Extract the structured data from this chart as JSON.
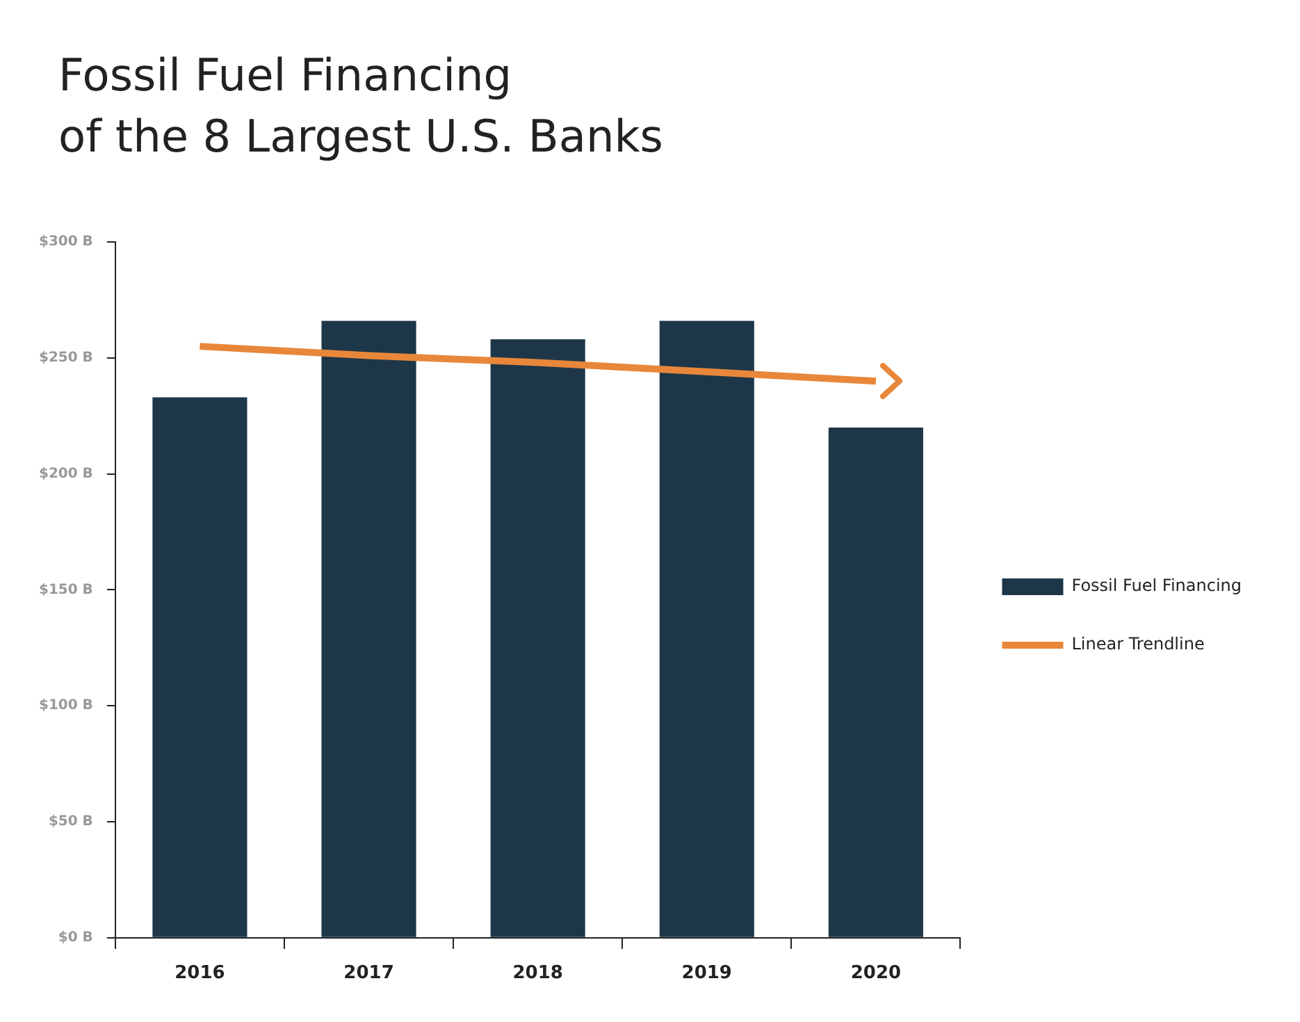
{
  "chart_data": {
    "type": "bar",
    "title": "Fossil Fuel Financing\nof the 8 Largest U.S. Banks",
    "categories": [
      "2016",
      "2017",
      "2018",
      "2019",
      "2020"
    ],
    "series": [
      {
        "name": "Fossil Fuel Financing",
        "color": "#1d3749",
        "values": [
          233,
          266,
          258,
          266,
          220
        ]
      },
      {
        "name": "Linear Trendline",
        "type": "line",
        "color": "#e8873a",
        "values": [
          255,
          251,
          248,
          244,
          240
        ]
      }
    ],
    "ylim": [
      0,
      300
    ],
    "yticks": [
      {
        "value": 0,
        "label": "$0 B"
      },
      {
        "value": 50,
        "label": "$50 B"
      },
      {
        "value": 100,
        "label": "$100 B"
      },
      {
        "value": 150,
        "label": "$150 B"
      },
      {
        "value": 200,
        "label": "$200 B"
      },
      {
        "value": 250,
        "label": "$250 B"
      },
      {
        "value": 300,
        "label": "$300 B"
      }
    ],
    "grid": false,
    "legend": "right",
    "marker": "none",
    "line_style": "solid"
  }
}
